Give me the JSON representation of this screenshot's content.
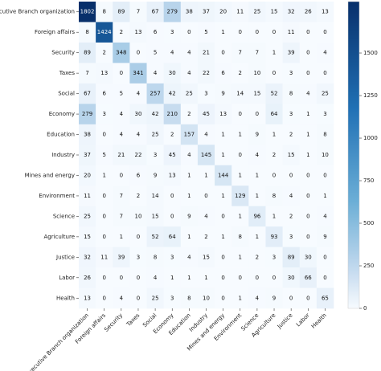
{
  "chart_data": {
    "type": "heatmap",
    "row_labels": [
      "Executive Branch organization",
      "Foreign affairs",
      "Security",
      "Taxes",
      "Social",
      "Economy",
      "Education",
      "Industry",
      "Mines and energy",
      "Environment",
      "Science",
      "Agriculture",
      "Justice",
      "Labor",
      "Health"
    ],
    "col_labels": [
      "Executive Branch organization",
      "Foreign affairs",
      "Security",
      "Taxes",
      "Social",
      "Economy",
      "Education",
      "Industry",
      "Mines and energy",
      "Environment",
      "Science",
      "Agriculture",
      "Justice",
      "Labor",
      "Health"
    ],
    "values": [
      [
        1802,
        8,
        89,
        7,
        67,
        279,
        38,
        37,
        20,
        11,
        25,
        15,
        32,
        26,
        13
      ],
      [
        8,
        1424,
        2,
        13,
        6,
        3,
        0,
        5,
        1,
        0,
        0,
        0,
        11,
        0,
        0
      ],
      [
        89,
        2,
        348,
        0,
        5,
        4,
        4,
        21,
        0,
        7,
        7,
        1,
        39,
        0,
        4
      ],
      [
        7,
        13,
        0,
        341,
        4,
        30,
        4,
        22,
        6,
        2,
        10,
        0,
        3,
        0,
        0
      ],
      [
        67,
        6,
        5,
        4,
        257,
        42,
        25,
        3,
        9,
        14,
        15,
        52,
        8,
        4,
        25
      ],
      [
        279,
        3,
        4,
        30,
        42,
        210,
        2,
        45,
        13,
        0,
        0,
        64,
        3,
        1,
        3
      ],
      [
        38,
        0,
        4,
        4,
        25,
        2,
        157,
        4,
        1,
        1,
        9,
        1,
        2,
        1,
        8
      ],
      [
        37,
        5,
        21,
        22,
        3,
        45,
        4,
        145,
        1,
        0,
        4,
        2,
        15,
        1,
        10
      ],
      [
        20,
        1,
        0,
        6,
        9,
        13,
        1,
        1,
        144,
        1,
        1,
        0,
        0,
        0,
        0
      ],
      [
        11,
        0,
        7,
        2,
        14,
        0,
        1,
        0,
        1,
        129,
        1,
        8,
        4,
        0,
        1
      ],
      [
        25,
        0,
        7,
        10,
        15,
        0,
        9,
        4,
        0,
        1,
        96,
        1,
        2,
        0,
        4
      ],
      [
        15,
        0,
        1,
        0,
        52,
        64,
        1,
        2,
        1,
        8,
        1,
        93,
        3,
        0,
        9
      ],
      [
        32,
        11,
        39,
        3,
        8,
        3,
        4,
        15,
        0,
        1,
        2,
        3,
        89,
        30,
        0
      ],
      [
        26,
        0,
        0,
        0,
        4,
        1,
        1,
        1,
        0,
        0,
        0,
        0,
        30,
        66,
        0
      ],
      [
        13,
        0,
        4,
        0,
        25,
        3,
        8,
        10,
        0,
        1,
        4,
        9,
        0,
        0,
        65
      ]
    ],
    "colorbar": {
      "min": 0,
      "max": 1802,
      "ticks": [
        0,
        250,
        500,
        750,
        1000,
        1250,
        1500
      ],
      "tick_labels": [
        "0",
        "250",
        "500",
        "750",
        "1000",
        "1250",
        "1500"
      ],
      "colors": [
        "#f7fbff",
        "#c6dbef",
        "#6baed6",
        "#2171b5",
        "#08306b"
      ]
    },
    "grid": false,
    "legend": "colorbar-right"
  }
}
